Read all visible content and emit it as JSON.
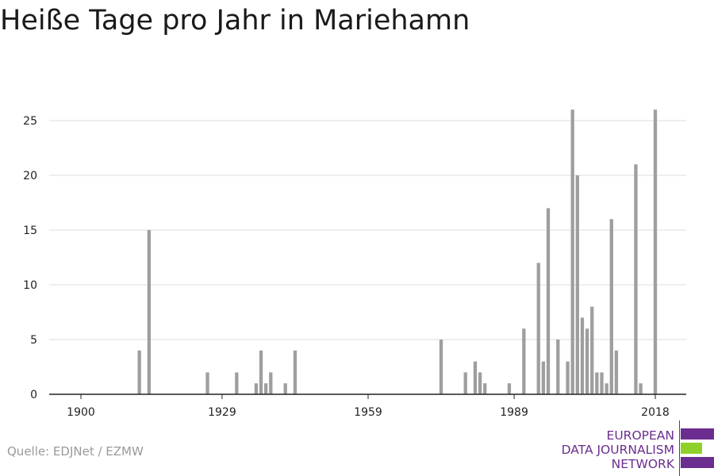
{
  "title": "Heiße Tage pro Jahr in Mariehamn",
  "source": "Quelle: EDJNet / EZMW",
  "logo": {
    "lines": [
      "EUROPEAN",
      "DATA JOURNALISM",
      "NETWORK"
    ],
    "colors": {
      "purple": "#6b2d8f",
      "green": "#8fd12a"
    }
  },
  "chart_data": {
    "type": "bar",
    "title": "Heiße Tage pro Jahr in Mariehamn",
    "xlabel": "",
    "ylabel": "",
    "ylim": [
      0,
      26
    ],
    "yticks": [
      0,
      5,
      10,
      15,
      20,
      25
    ],
    "xticks": [
      1900,
      1929,
      1959,
      1989,
      2018
    ],
    "xlim": [
      1900,
      2018
    ],
    "grid": true,
    "bar_color": "#9e9e9e",
    "x": [
      1912,
      1914,
      1926,
      1932,
      1936,
      1937,
      1938,
      1939,
      1942,
      1944,
      1974,
      1979,
      1981,
      1982,
      1983,
      1988,
      1991,
      1994,
      1995,
      1996,
      1998,
      2000,
      2001,
      2002,
      2003,
      2004,
      2005,
      2006,
      2007,
      2008,
      2009,
      2010,
      2014,
      2015,
      2018
    ],
    "values": [
      4,
      15,
      2,
      2,
      1,
      4,
      1,
      2,
      1,
      4,
      5,
      2,
      3,
      2,
      1,
      1,
      6,
      12,
      3,
      17,
      5,
      3,
      26,
      20,
      7,
      6,
      8,
      2,
      2,
      1,
      16,
      4,
      21,
      1,
      26
    ]
  }
}
